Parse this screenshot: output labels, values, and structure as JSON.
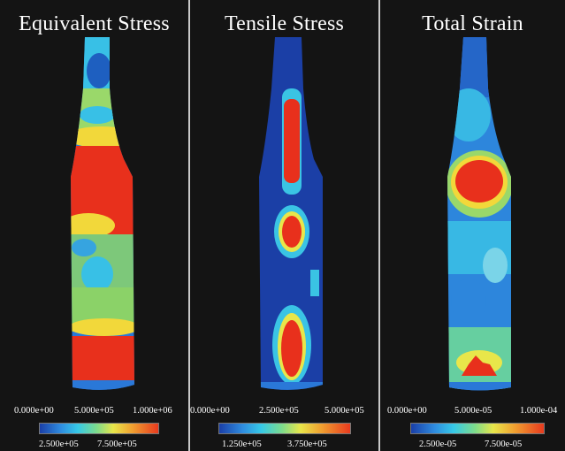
{
  "panels": [
    {
      "title": "Equivalent Stress",
      "ticks_top": [
        "0.000e+00",
        "5.000e+05",
        "1.000e+06"
      ],
      "ticks_bottom": [
        "2.500e+05",
        "7.500e+05"
      ]
    },
    {
      "title": "Tensile Stress",
      "ticks_top": [
        "0.000e+00",
        "2.500e+05",
        "5.000e+05"
      ],
      "ticks_bottom": [
        "1.250e+05",
        "3.750e+05"
      ]
    },
    {
      "title": "Total Strain",
      "ticks_top": [
        "0.000e+00",
        "5.000e-05",
        "1.000e-04"
      ],
      "ticks_bottom": [
        "2.500e-05",
        "7.500e-05"
      ]
    }
  ],
  "colors": {
    "background": "#141414",
    "divider": "#c8c8c8",
    "low": "#1a3fa8",
    "mid": "#7ddc8c",
    "high": "#e83a1e"
  }
}
